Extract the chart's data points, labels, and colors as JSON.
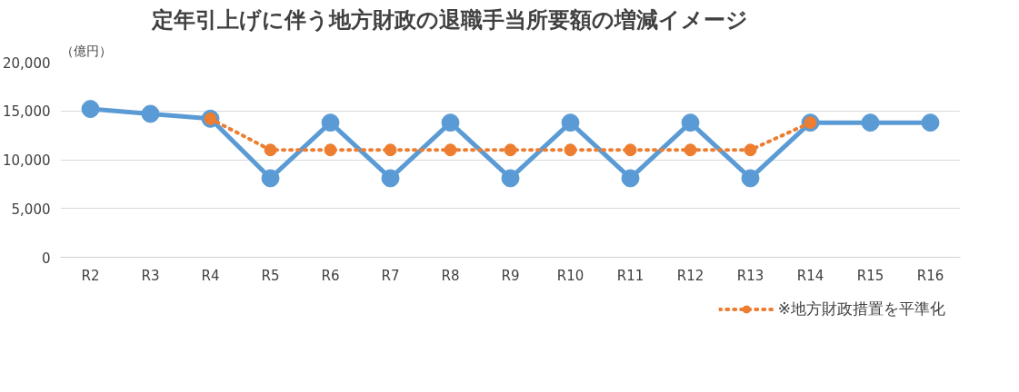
{
  "chart_data": {
    "type": "line",
    "title": "定年引上げに伴う地方財政の退職手当所要額の増減イメージ",
    "ylabel": "（億円）",
    "categories": [
      "R2",
      "R3",
      "R4",
      "R5",
      "R6",
      "R7",
      "R8",
      "R9",
      "R10",
      "R11",
      "R12",
      "R13",
      "R14",
      "R15",
      "R16"
    ],
    "series": [
      {
        "color": "#5b9bd5",
        "line_style": "solid",
        "values": [
          15200,
          14700,
          14200,
          8100,
          13800,
          8100,
          13800,
          8100,
          13800,
          8100,
          13800,
          8100,
          13800,
          13800,
          13800
        ]
      },
      {
        "name": "※地方財政措置を平準化",
        "color": "#ed7d31",
        "line_style": "dotted",
        "values": [
          null,
          null,
          14200,
          11000,
          11000,
          11000,
          11000,
          11000,
          11000,
          11000,
          11000,
          11000,
          13800,
          null,
          null
        ]
      }
    ],
    "ylim": [
      0,
      20000
    ],
    "yticks": [
      {
        "value": 0,
        "label": "0"
      },
      {
        "value": 5000,
        "label": "5,000"
      },
      {
        "value": 10000,
        "label": "10,000"
      },
      {
        "value": 15000,
        "label": "15,000"
      },
      {
        "value": 20000,
        "label": "20,000"
      }
    ],
    "grid": "y",
    "marker": "circle",
    "legend": "bottom right"
  }
}
